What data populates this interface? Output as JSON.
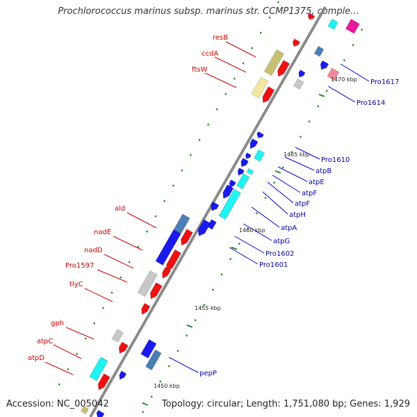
{
  "title": "Prochlorococcus marinus subsp. marinus str. CCMP1375, comple...",
  "footer": {
    "accession": "Accession: NC_005042",
    "info": "Topology: circular; Length: 1,751,080 bp; Genes: 1,929"
  },
  "ticks": [
    "1450 kbp",
    "1455 kbp",
    "1460 kbp",
    "1465 kbp",
    "1470 kbp"
  ],
  "labels_left": [
    "resB",
    "ccdA",
    "ftsW",
    "ald",
    "nadE",
    "nadD",
    "Pro1597",
    "tlyC",
    "gph",
    "atpC",
    "atpD"
  ],
  "labels_right": [
    "Pro1617",
    "Pro1614",
    "Pro1610",
    "atpB",
    "atpE",
    "atpF",
    "atpF",
    "atpH",
    "atpA",
    "atpG",
    "Pro1602",
    "Pro1601",
    "pepP"
  ],
  "colors": {
    "red": "#ee1111",
    "blue": "#1a1aee",
    "cyan": "#22f2f2",
    "steel": "#4a7fb5",
    "olive": "#c8c070",
    "paleyellow": "#f2e8a0",
    "grey": "#c8c8c8",
    "pink": "#f08a9a",
    "magenta": "#e81aa0",
    "backbone": "#8a8a8a",
    "ticks": "#2a8a2a"
  }
}
